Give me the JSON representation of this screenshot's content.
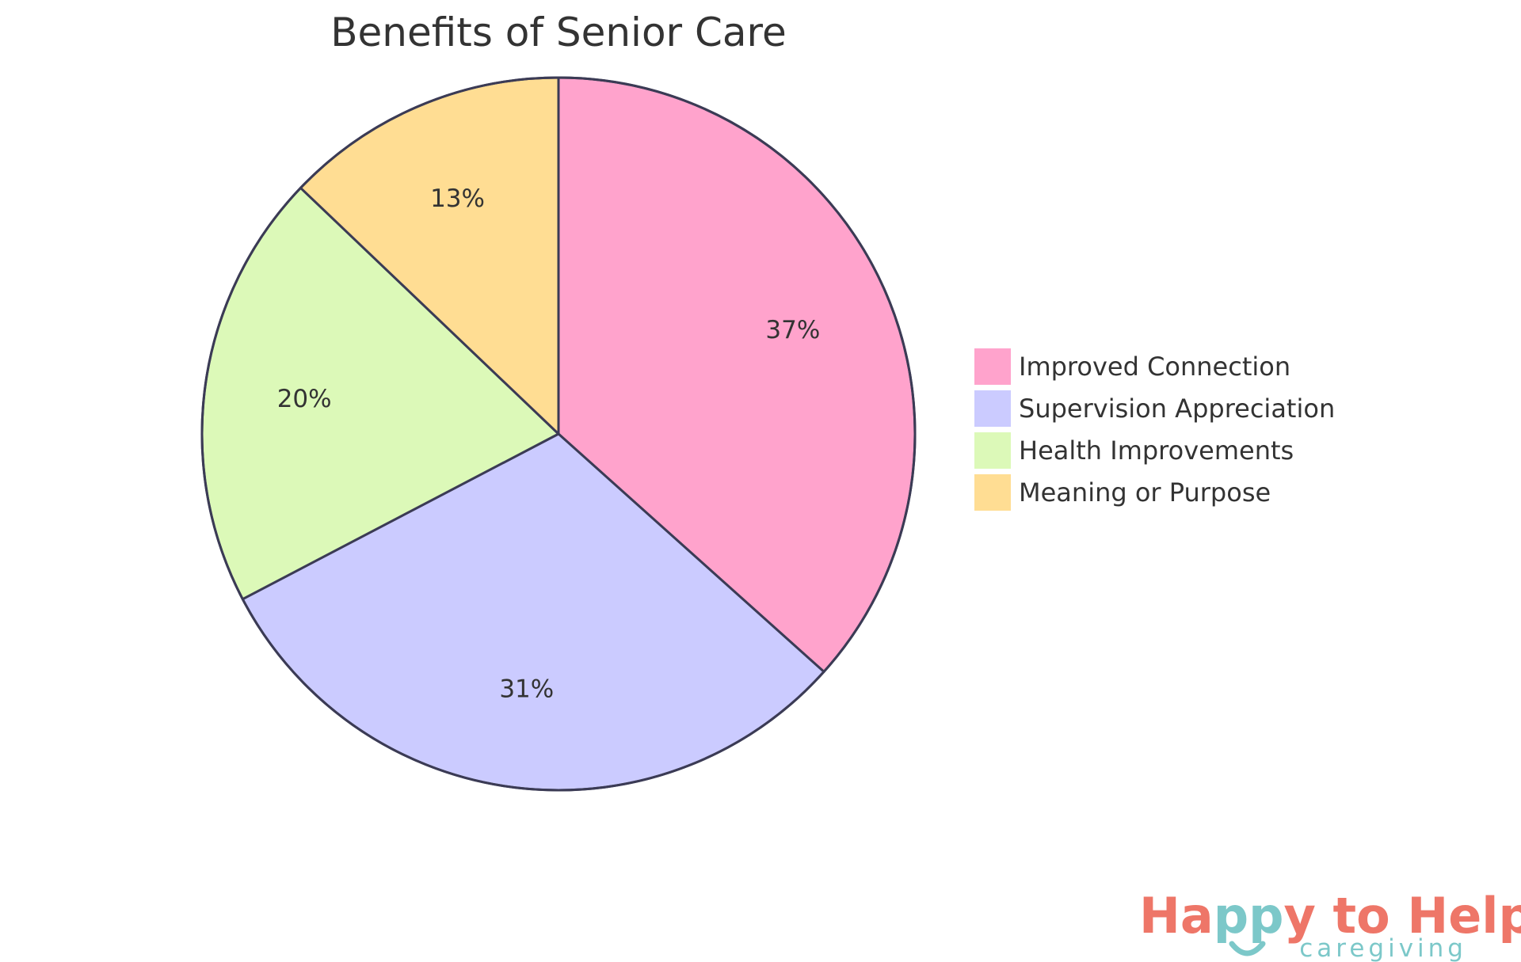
{
  "chart_data": {
    "type": "pie",
    "title": "Benefits of Senior Care",
    "categories": [
      "Improved Connection",
      "Supervision Appreciation",
      "Health Improvements",
      "Meaning or Purpose"
    ],
    "values": [
      37,
      31,
      20,
      13
    ],
    "value_labels": [
      "37%",
      "31%",
      "20%",
      "13%"
    ],
    "colors": [
      "#ffa3cc",
      "#cbcbff",
      "#dcf9b8",
      "#ffdd93"
    ],
    "stroke_color": "#3b3b55",
    "start_angle": "12 o'clock",
    "direction": "clockwise",
    "legend_position": "right"
  },
  "logo": {
    "parts": [
      "Ha",
      "pp",
      "y to Help"
    ],
    "tagline": "caregiving",
    "color_main": "#ee7668",
    "color_accent": "#7cc8c9"
  }
}
